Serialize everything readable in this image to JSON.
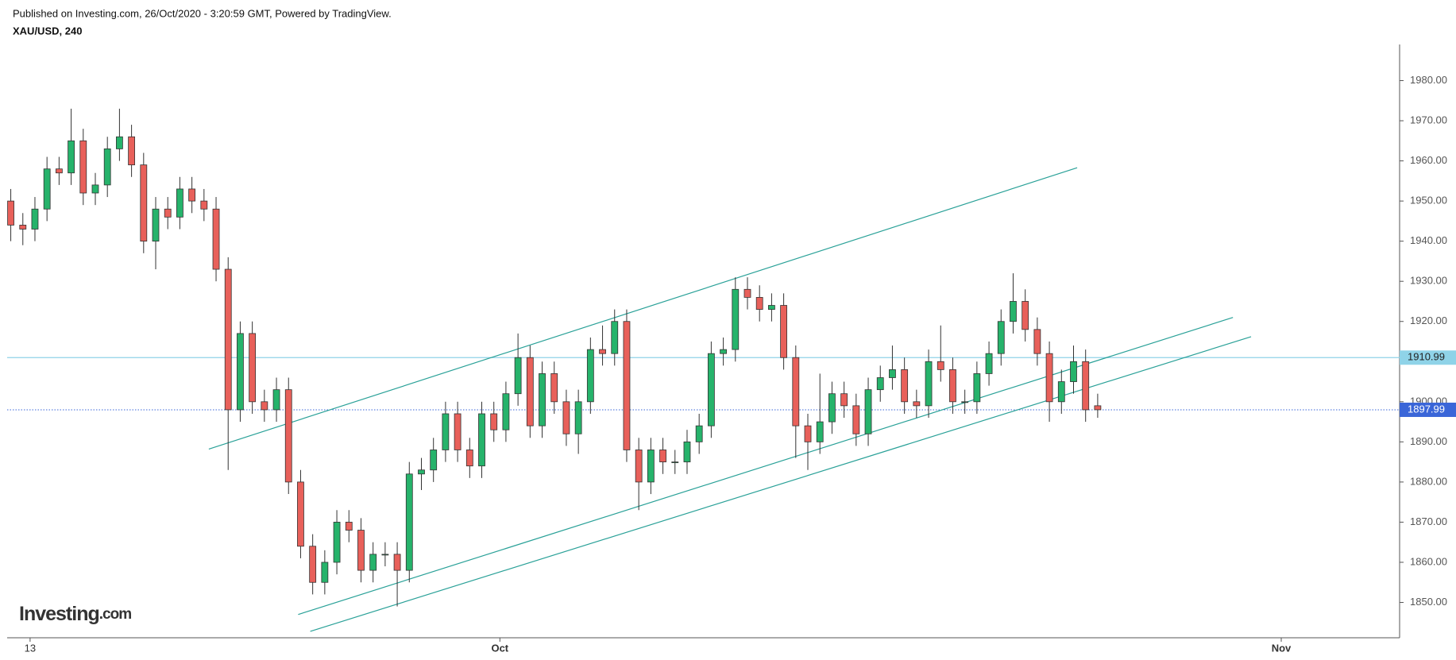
{
  "header": {
    "published": "Published on Investing.com, 26/Oct/2020 - 3:20:59 GMT, Powered by TradingView.",
    "symbol": "XAU/USD, 240"
  },
  "logo": {
    "name": "Investing",
    "suffix": ".com"
  },
  "chart_data": {
    "type": "candlestick",
    "open": [
      1950,
      1944,
      1943,
      1948,
      1958,
      1957,
      1965,
      1952,
      1954,
      1963,
      1966,
      1959,
      1940,
      1948,
      1946,
      1953,
      1950,
      1948,
      1933,
      1898,
      1917,
      1900,
      1898,
      1903,
      1880,
      1864,
      1855,
      1860,
      1870,
      1868,
      1858,
      1862,
      1862,
      1858,
      1882,
      1883,
      1888,
      1897,
      1888,
      1884,
      1897,
      1893,
      1902,
      1911,
      1894,
      1907,
      1900,
      1892,
      1900,
      1913,
      1912,
      1920,
      1888,
      1880,
      1888,
      1885,
      1885,
      1890,
      1894,
      1912,
      1913,
      1928,
      1926,
      1923,
      1924,
      1911,
      1894,
      1890,
      1895,
      1902,
      1899,
      1892,
      1903,
      1906,
      1908,
      1900,
      1899,
      1910,
      1908,
      1900,
      1900,
      1907,
      1912,
      1920,
      1925,
      1918,
      1912,
      1900,
      1905,
      1910,
      1899
    ],
    "high": [
      1953,
      1947,
      1951,
      1961,
      1961,
      1973,
      1968,
      1957,
      1966,
      1973,
      1969,
      1962,
      1951,
      1951,
      1956,
      1956,
      1953,
      1951,
      1936,
      1920,
      1920,
      1903,
      1906,
      1906,
      1883,
      1867,
      1863,
      1873,
      1873,
      1871,
      1865,
      1865,
      1865,
      1885,
      1886,
      1891,
      1900,
      1900,
      1891,
      1900,
      1900,
      1905,
      1917,
      1914,
      1910,
      1910,
      1903,
      1903,
      1916,
      1919,
      1923,
      1923,
      1891,
      1891,
      1891,
      1888,
      1893,
      1897,
      1915,
      1916,
      1931,
      1931,
      1929,
      1927,
      1927,
      1914,
      1897,
      1907,
      1905,
      1905,
      1902,
      1906,
      1909,
      1914,
      1911,
      1903,
      1913,
      1919,
      1911,
      1903,
      1910,
      1915,
      1923,
      1932,
      1928,
      1921,
      1915,
      1908,
      1914,
      1913,
      1902
    ],
    "low": [
      1940,
      1939,
      1940,
      1945,
      1954,
      1954,
      1949,
      1949,
      1951,
      1960,
      1956,
      1937,
      1933,
      1943,
      1943,
      1947,
      1945,
      1930,
      1883,
      1895,
      1897,
      1895,
      1895,
      1877,
      1861,
      1852,
      1852,
      1857,
      1865,
      1855,
      1855,
      1859,
      1849,
      1855,
      1878,
      1880,
      1885,
      1885,
      1881,
      1881,
      1890,
      1890,
      1899,
      1891,
      1891,
      1897,
      1889,
      1887,
      1897,
      1909,
      1909,
      1885,
      1873,
      1877,
      1882,
      1882,
      1882,
      1887,
      1891,
      1909,
      1910,
      1923,
      1920,
      1920,
      1908,
      1886,
      1883,
      1887,
      1892,
      1896,
      1889,
      1889,
      1900,
      1903,
      1897,
      1896,
      1896,
      1905,
      1897,
      1897,
      1897,
      1904,
      1909,
      1917,
      1915,
      1909,
      1895,
      1897,
      1902,
      1895,
      1896
    ],
    "close": [
      1944,
      1943,
      1948,
      1958,
      1957,
      1965,
      1952,
      1954,
      1963,
      1966,
      1959,
      1940,
      1948,
      1946,
      1953,
      1950,
      1948,
      1933,
      1898,
      1917,
      1900,
      1898,
      1903,
      1880,
      1864,
      1855,
      1860,
      1870,
      1868,
      1858,
      1862,
      1862,
      1858,
      1882,
      1883,
      1888,
      1897,
      1888,
      1884,
      1897,
      1893,
      1902,
      1911,
      1894,
      1907,
      1900,
      1892,
      1900,
      1913,
      1912,
      1920,
      1888,
      1880,
      1888,
      1885,
      1885,
      1890,
      1894,
      1912,
      1913,
      1928,
      1926,
      1923,
      1924,
      1911,
      1894,
      1890,
      1895,
      1902,
      1899,
      1892,
      1903,
      1906,
      1908,
      1900,
      1899,
      1910,
      1908,
      1900,
      1900,
      1907,
      1912,
      1920,
      1925,
      1918,
      1912,
      1900,
      1905,
      1910,
      1898,
      1898
    ],
    "up_color": "#26b36b",
    "down_color": "#e8605a",
    "xlim": [
      -0.3,
      115
    ],
    "xticks": [
      {
        "value": 1.6,
        "label": "13"
      },
      {
        "value": 40.5,
        "label": "Oct"
      },
      {
        "value": 105.2,
        "label": "Nov"
      }
    ],
    "ylim": [
      1841.2,
      1989
    ],
    "yticks": [
      {
        "value": 1850,
        "label": "1850.00"
      },
      {
        "value": 1860,
        "label": "1860.00"
      },
      {
        "value": 1870,
        "label": "1870.00"
      },
      {
        "value": 1880,
        "label": "1880.00"
      },
      {
        "value": 1890,
        "label": "1890.00"
      },
      {
        "value": 1900,
        "label": "1900.00"
      },
      {
        "value": 1910,
        "label": "1910.00"
      },
      {
        "value": 1920,
        "label": "1920.00"
      },
      {
        "value": 1930,
        "label": "1930.00"
      },
      {
        "value": 1940,
        "label": "1940.00"
      },
      {
        "value": 1950,
        "label": "1950.00"
      },
      {
        "value": 1960,
        "label": "1960.00"
      },
      {
        "value": 1970,
        "label": "1970.00"
      },
      {
        "value": 1980,
        "label": "1980.00"
      }
    ],
    "level_line": {
      "value": 1910.99,
      "color": "#8fd3e8"
    },
    "last_price": {
      "value": 1897.99,
      "color": "#3a66d8"
    },
    "trend_lines": {
      "color": "#2aa198",
      "lines": [
        {
          "x": [
            16.4,
            88.3
          ],
          "y": [
            1888.2,
            1958.3
          ]
        },
        {
          "x": [
            23.8,
            101.2
          ],
          "y": [
            1847.0,
            1921.0
          ]
        },
        {
          "x": [
            24.8,
            102.7
          ],
          "y": [
            1842.8,
            1916.2
          ]
        }
      ]
    }
  }
}
